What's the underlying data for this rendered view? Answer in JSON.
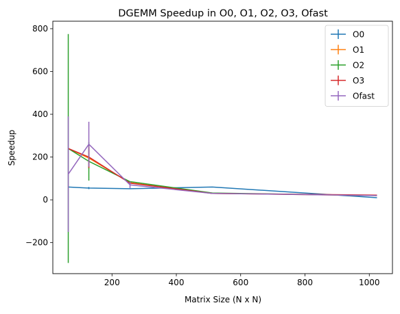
{
  "chart_data": {
    "type": "line",
    "title": "DGEMM Speedup in O0, O1, O2, O3, Ofast",
    "xlabel": "Matrix Size (N x N)",
    "ylabel": "Speedup",
    "xlim": [
      16,
      1072
    ],
    "ylim": [
      -345,
      835
    ],
    "xticks": [
      200,
      400,
      600,
      800,
      1000
    ],
    "xtick_labels": [
      "200",
      "400",
      "600",
      "800",
      "1000"
    ],
    "yticks": [
      -200,
      0,
      200,
      400,
      600,
      800
    ],
    "ytick_labels": [
      "−200",
      "0",
      "200",
      "400",
      "600",
      "800"
    ],
    "grid": false,
    "legend_position": "top-right",
    "x": [
      64,
      128,
      256,
      512,
      1024
    ],
    "series": [
      {
        "name": "O0",
        "color": "#1f77b4",
        "values": [
          60,
          55,
          52,
          60,
          10
        ],
        "errors": [
          0,
          5,
          0,
          0,
          0
        ]
      },
      {
        "name": "O1",
        "color": "#ff7f0e",
        "values": [
          240,
          195,
          80,
          30,
          20
        ],
        "errors": [
          0,
          50,
          0,
          0,
          0
        ]
      },
      {
        "name": "O2",
        "color": "#2ca02c",
        "values": [
          240,
          180,
          85,
          32,
          20
        ],
        "errors": [
          535,
          90,
          0,
          0,
          0
        ]
      },
      {
        "name": "O3",
        "color": "#d62728",
        "values": [
          240,
          200,
          78,
          30,
          22
        ],
        "errors": [
          0,
          50,
          0,
          0,
          0
        ]
      },
      {
        "name": "Ofast",
        "color": "#9467bd",
        "values": [
          120,
          260,
          70,
          30,
          20
        ],
        "errors": [
          270,
          105,
          15,
          0,
          0
        ]
      }
    ]
  }
}
